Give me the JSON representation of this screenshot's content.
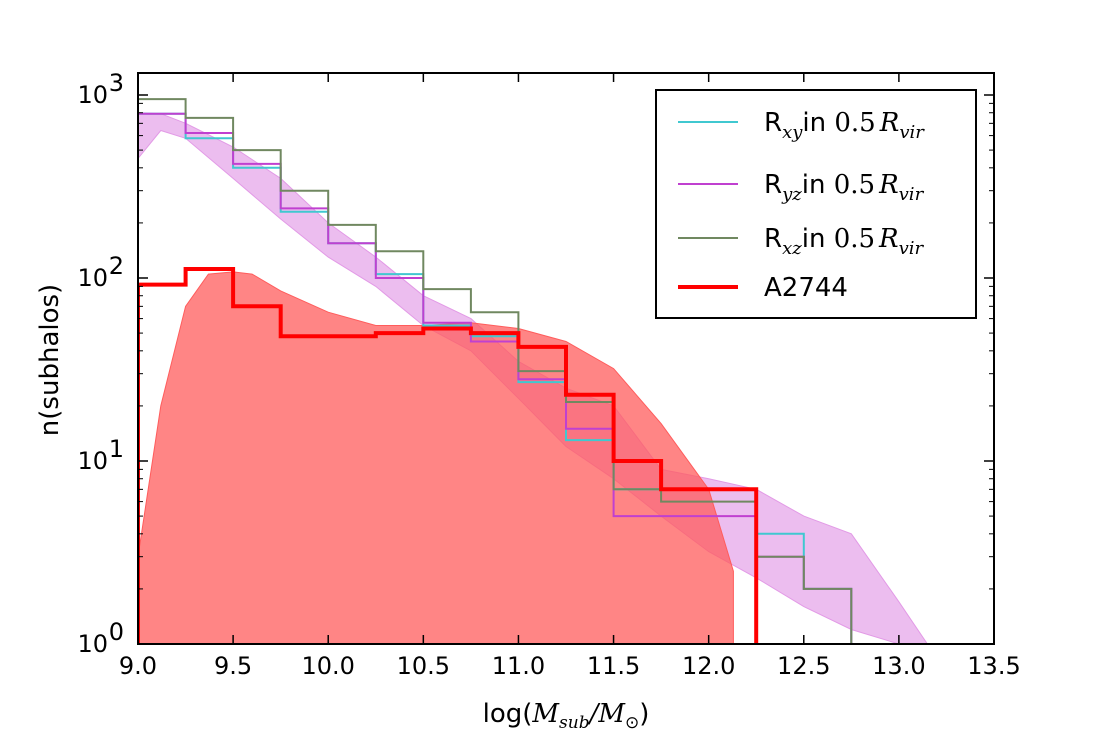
{
  "chart_data": {
    "type": "line",
    "title": "",
    "xlabel": "log(M_sub/M_⊙)",
    "ylabel": "n(subhalos)",
    "xlim": [
      9.0,
      13.5
    ],
    "ylim": [
      1,
      1200
    ],
    "yscale": "log",
    "grid": false,
    "legend_position": "top-right",
    "x_ticks": [
      9.0,
      9.5,
      10.0,
      10.5,
      11.0,
      11.5,
      12.0,
      12.5,
      13.0,
      13.5
    ],
    "x_tick_labels": [
      "9.0",
      "9.5",
      "10.0",
      "10.5",
      "11.0",
      "11.5",
      "12.0",
      "12.5",
      "13.0",
      "13.5"
    ],
    "y_ticks": [
      1,
      10,
      100,
      1000
    ],
    "y_tick_labels": [
      {
        "base": "10",
        "exp": "0"
      },
      {
        "base": "10",
        "exp": "1"
      },
      {
        "base": "10",
        "exp": "2"
      },
      {
        "base": "10",
        "exp": "3"
      }
    ],
    "xlabel_parts": {
      "prefix": "log(",
      "num": "M",
      "num_sub": "sub",
      "sep": "/",
      "den": "M",
      "den_sub": "⊙",
      "suffix": ")"
    },
    "bin_edges": [
      9.0,
      9.25,
      9.5,
      9.75,
      10.0,
      10.25,
      10.5,
      10.75,
      11.0,
      11.25,
      11.5,
      11.75,
      12.0,
      12.25,
      12.5,
      12.75,
      13.0
    ],
    "series": [
      {
        "name": "Rxy",
        "legend": {
          "prefix": "R",
          "sub": "xy",
          "mid": "in ",
          "num": "0.5",
          "r": "R",
          "r_sub": "vir"
        },
        "color": "#40c8d0",
        "values": [
          790,
          580,
          400,
          230,
          155,
          105,
          55,
          48,
          27,
          13,
          7,
          7,
          7,
          4,
          2
        ]
      },
      {
        "name": "Ryz",
        "legend": {
          "prefix": "R",
          "sub": "yz",
          "mid": "in ",
          "num": "0.5",
          "r": "R",
          "r_sub": "vir"
        },
        "color": "#c040d0",
        "values": [
          790,
          620,
          420,
          240,
          155,
          100,
          57,
          45,
          28,
          15,
          5,
          5,
          5,
          3,
          2
        ]
      },
      {
        "name": "Rxz",
        "legend": {
          "prefix": "R",
          "sub": "xz",
          "mid": "in ",
          "num": "0.5",
          "r": "R",
          "r_sub": "vir"
        },
        "color": "#708860",
        "values": [
          950,
          750,
          500,
          300,
          195,
          140,
          87,
          65,
          31,
          21,
          7,
          6,
          6,
          3,
          2
        ]
      },
      {
        "name": "A2744",
        "legend": {
          "text": "A2744"
        },
        "color": "#ff0000",
        "values": [
          92,
          112,
          70,
          48,
          48,
          50,
          53,
          50,
          42,
          23,
          10,
          7,
          7
        ]
      }
    ],
    "bands": [
      {
        "name": "simulation-range",
        "color": "#e29ae6",
        "upper_x": [
          9.0,
          9.12,
          9.25,
          9.5,
          9.75,
          10.0,
          10.25,
          10.5,
          10.75,
          11.0,
          11.25,
          11.5,
          11.75,
          12.0,
          12.25,
          12.5,
          12.75,
          13.0,
          13.15
        ],
        "upper_y": [
          800,
          790,
          700,
          520,
          350,
          200,
          130,
          80,
          60,
          35,
          25,
          20,
          9,
          8,
          7,
          5,
          4,
          1.7,
          1
        ],
        "lower_x": [
          9.0,
          9.12,
          9.25,
          9.5,
          9.75,
          10.0,
          10.25,
          10.5,
          10.75,
          11.0,
          11.25,
          11.5,
          11.75,
          12.0,
          12.25,
          12.5,
          12.75,
          13.0,
          13.15
        ],
        "lower_y": [
          450,
          640,
          580,
          350,
          210,
          130,
          90,
          55,
          40,
          22,
          12,
          8,
          5,
          3.2,
          2.3,
          1.6,
          1.2,
          1.0,
          1
        ]
      },
      {
        "name": "A2744-error-lower-mass",
        "color": "#ff5c5c",
        "upper_x": [
          9.0,
          9.12,
          9.25,
          9.37,
          9.5,
          9.6,
          9.75,
          10.0,
          10.25,
          10.5,
          10.75,
          11.0,
          11.25,
          11.5,
          11.75,
          12.0,
          12.13
        ],
        "upper_y": [
          3,
          20,
          70,
          105,
          108,
          105,
          85,
          65,
          55,
          55,
          57,
          53,
          45,
          32,
          16,
          7,
          2.5
        ],
        "lower_x": [
          9.0,
          9.12,
          9.25,
          9.37,
          9.5,
          9.6,
          9.75,
          10.0,
          10.25,
          10.5,
          10.75,
          11.0,
          11.25,
          11.5,
          11.75,
          12.0,
          12.13
        ],
        "lower_y": [
          1,
          1,
          1,
          1,
          1,
          1,
          1,
          1,
          1,
          1,
          1,
          1,
          1,
          1,
          1,
          1,
          1
        ]
      }
    ]
  }
}
